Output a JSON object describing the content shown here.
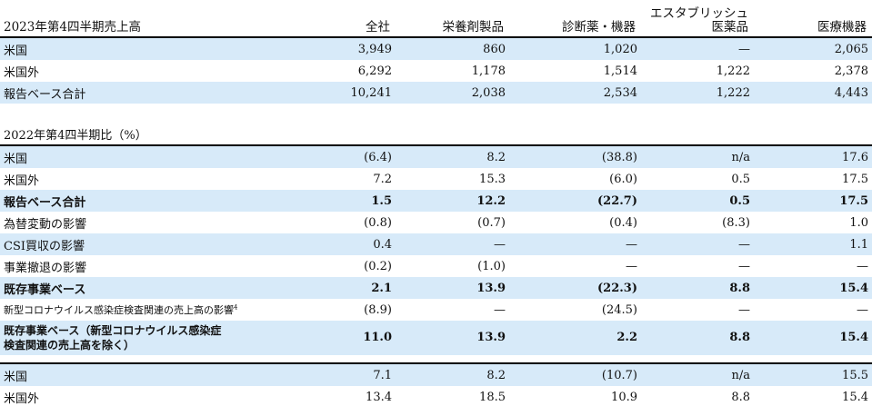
{
  "table1": {
    "title": "2023年第4四半期売上高",
    "columns": [
      "全社",
      "栄養剤製品",
      "診断薬・機器",
      "エスタブリッシュ 医薬品",
      "医療機器"
    ],
    "column_line1": [
      "全社",
      "栄養剤製品",
      "診断薬・機器",
      "エスタブリッシュ",
      "医療機器"
    ],
    "column_line2": [
      "",
      "",
      "",
      "医薬品",
      ""
    ],
    "rows": [
      {
        "label": "米国",
        "values": [
          "3,949",
          "860",
          "1,020",
          "—",
          "2,065"
        ]
      },
      {
        "label": "米国外",
        "values": [
          "6,292",
          "1,178",
          "1,514",
          "1,222",
          "2,378"
        ]
      },
      {
        "label": "報告ベース合計",
        "values": [
          "10,241",
          "2,038",
          "2,534",
          "1,222",
          "4,443"
        ]
      }
    ]
  },
  "table2": {
    "title": "2022年第4四半期比（%）",
    "rows": [
      {
        "label": "米国",
        "values": [
          "(6.4)",
          "8.2",
          "(38.8)",
          "n/a",
          "17.6"
        ]
      },
      {
        "label": "米国外",
        "values": [
          "7.2",
          "15.3",
          "(6.0)",
          "0.5",
          "17.5"
        ]
      },
      {
        "label": "報告ベース合計",
        "values": [
          "1.5",
          "12.2",
          "(22.7)",
          "0.5",
          "17.5"
        ]
      },
      {
        "label": "為替変動の影響",
        "values": [
          "(0.8)",
          "(0.7)",
          "(0.4)",
          "(8.3)",
          "1.0"
        ]
      },
      {
        "label": "CSI買収の影響",
        "values": [
          "0.4",
          "—",
          "—",
          "—",
          "1.1"
        ]
      },
      {
        "label": "事業撤退の影響",
        "values": [
          "(0.2)",
          "(1.0)",
          "—",
          "—",
          "—"
        ]
      },
      {
        "label": "既存事業ベース",
        "values": [
          "2.1",
          "13.9",
          "(22.3)",
          "8.8",
          "15.4"
        ]
      },
      {
        "label": "新型コロナウイルス感染症検査関連の売上高の影響",
        "footnote": "4",
        "values": [
          "(8.9)",
          "—",
          "(24.5)",
          "—",
          "—"
        ]
      },
      {
        "label_line1": "既存事業ベース（新型コロナウイルス感染症",
        "label_line2": "検査関連の売上高を除く）",
        "values": [
          "11.0",
          "13.9",
          "2.2",
          "8.8",
          "15.4"
        ]
      },
      {
        "label": "米国",
        "values": [
          "7.1",
          "8.2",
          "(10.7)",
          "n/a",
          "15.5"
        ]
      },
      {
        "label": "米国外",
        "values": [
          "13.4",
          "18.5",
          "10.9",
          "8.8",
          "15.4"
        ]
      }
    ]
  }
}
